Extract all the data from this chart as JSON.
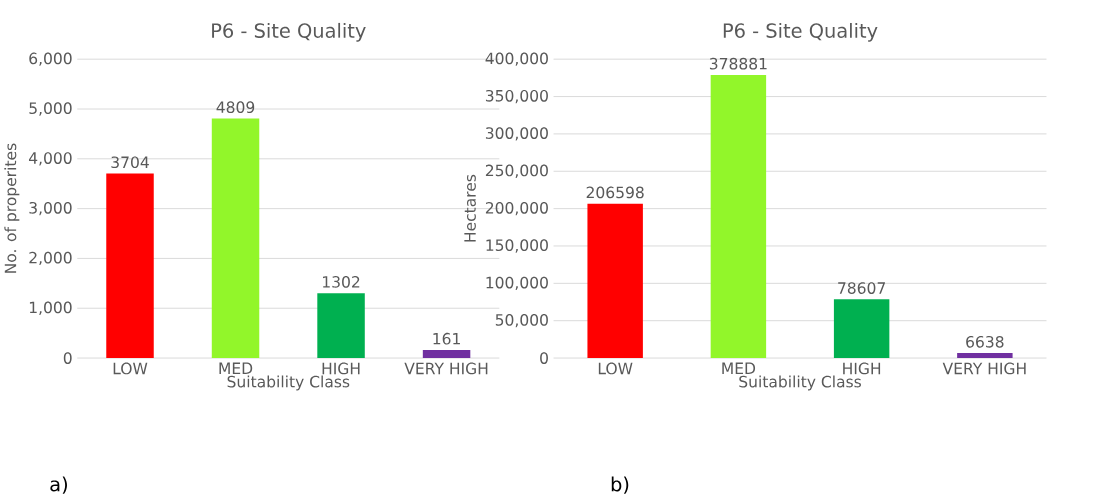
{
  "chart_data": [
    {
      "type": "bar",
      "title": "P6 - Site Quality",
      "xlabel": "Suitability Class",
      "ylabel": "No. of properites",
      "categories": [
        "LOW",
        "MED",
        "HIGH",
        "VERY HIGH"
      ],
      "values": [
        3704,
        4809,
        1302,
        161
      ],
      "colors": [
        "#ff0000",
        "#92f62a",
        "#00b050",
        "#7030a0"
      ],
      "ylim": [
        0,
        6000
      ],
      "yticks": [
        {
          "value": 0,
          "label": "0"
        },
        {
          "value": 1000,
          "label": "1,000"
        },
        {
          "value": 2000,
          "label": "2,000"
        },
        {
          "value": 3000,
          "label": "3,000"
        },
        {
          "value": 4000,
          "label": "4,000"
        },
        {
          "value": 5000,
          "label": "5,000"
        },
        {
          "value": 6000,
          "label": "6,000"
        }
      ],
      "grid": "y",
      "data_labels": true,
      "annotations": [
        "a)"
      ]
    },
    {
      "type": "bar",
      "title": "P6 - Site Quality",
      "xlabel": "Suitability Class",
      "ylabel": "Hectares",
      "categories": [
        "LOW",
        "MED",
        "HIGH",
        "VERY HIGH"
      ],
      "values": [
        206598,
        378881,
        78607,
        6638
      ],
      "colors": [
        "#ff0000",
        "#92f62a",
        "#00b050",
        "#7030a0"
      ],
      "ylim": [
        0,
        400000
      ],
      "yticks": [
        {
          "value": 0,
          "label": "0"
        },
        {
          "value": 50000,
          "label": "50,000"
        },
        {
          "value": 100000,
          "label": "100,000"
        },
        {
          "value": 150000,
          "label": "150,000"
        },
        {
          "value": 200000,
          "label": "200,000"
        },
        {
          "value": 250000,
          "label": "250,000"
        },
        {
          "value": 300000,
          "label": "300,000"
        },
        {
          "value": 350000,
          "label": "350,000"
        },
        {
          "value": 400000,
          "label": "400,000"
        }
      ],
      "grid": "y",
      "data_labels": true,
      "annotations": [
        "b)"
      ]
    }
  ]
}
